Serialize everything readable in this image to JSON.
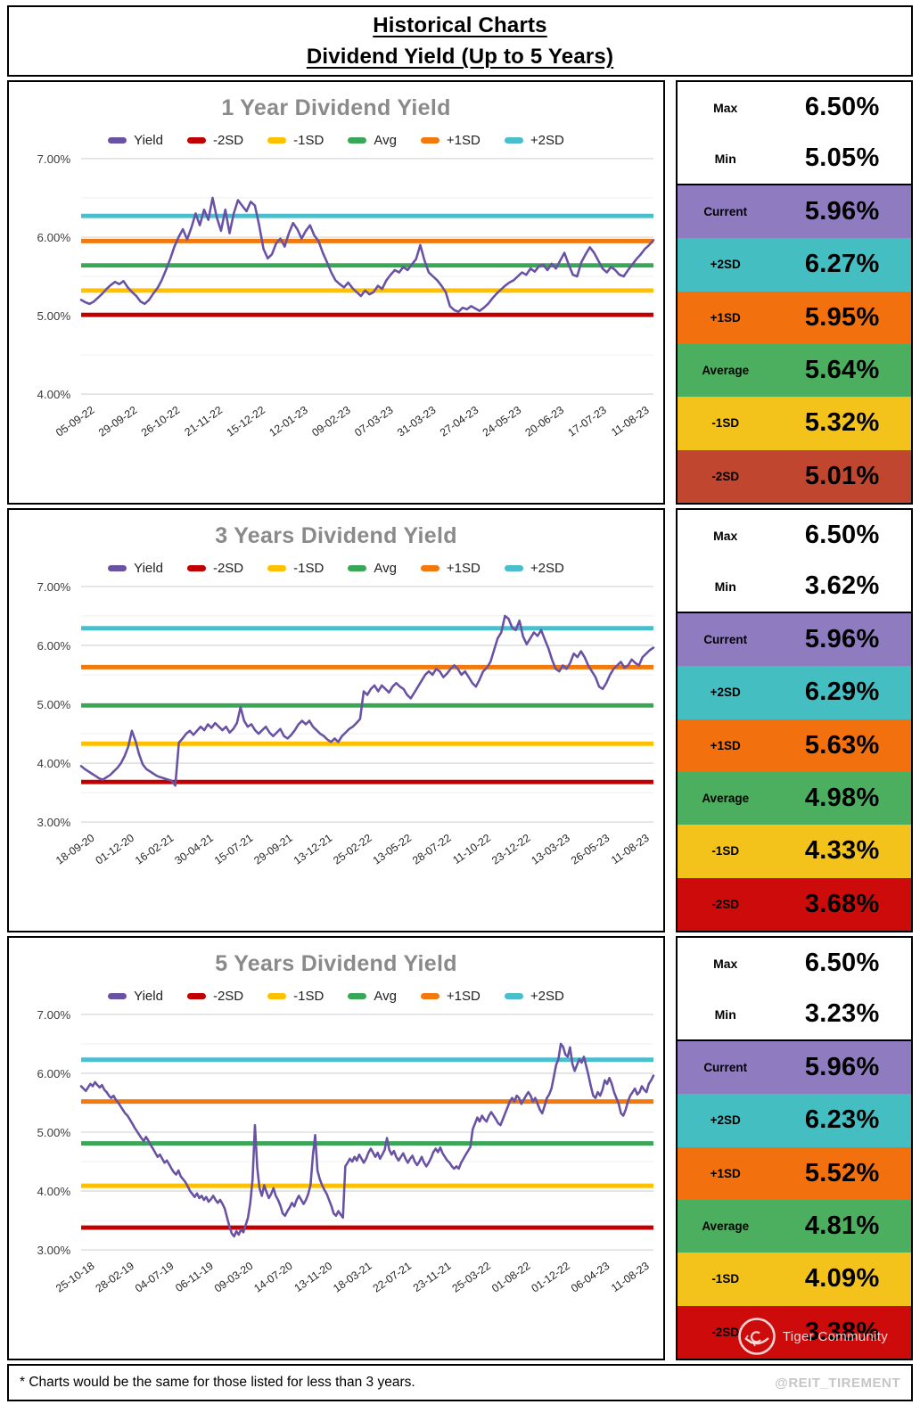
{
  "page": {
    "title_line1": "Historical Charts",
    "title_line2": "Dividend Yield (Up to 5 Years)",
    "footnote": "* Charts would be the same for those listed for less than 3 years.",
    "credit": "@REIT_TIREMENT",
    "watermark": "Tiger Community"
  },
  "colors": {
    "yield_line": "#6952a3",
    "minus2sd_line": "#c00000",
    "minus1sd_line": "#ffc000",
    "avg_line": "#3aa757",
    "plus1sd_line": "#f2790d",
    "plus2sd_line": "#4bbecd",
    "chart_title_gray": "#8a8a8a",
    "major_grid": "#d9d9d9",
    "minor_grid": "#efefef",
    "panel_current": "#8f7cc0",
    "panel_plus2sd": "#45bec2",
    "panel_plus1sd": "#f2700d",
    "panel_average": "#4cae5f",
    "panel_minus1sd": "#f3c31c",
    "panel_minus2sd_brick": "#c0462f",
    "panel_minus2sd_red": "#ce0b0b"
  },
  "legend": {
    "items": [
      {
        "label": "Yield",
        "color": "#6952a3"
      },
      {
        "label": "-2SD",
        "color": "#c00000"
      },
      {
        "label": "-1SD",
        "color": "#ffc000"
      },
      {
        "label": "Avg",
        "color": "#3aa757"
      },
      {
        "label": "+1SD",
        "color": "#f2790d"
      },
      {
        "label": "+2SD",
        "color": "#4bbecd"
      }
    ]
  },
  "chart_data": [
    {
      "type": "line",
      "title": "1 Year Dividend Yield",
      "ylim": [
        4,
        7
      ],
      "ytick_values": [
        7,
        6,
        5,
        4
      ],
      "ytick_labels": [
        "7.00%",
        "6.00%",
        "5.00%",
        "4.00%"
      ],
      "minor_grid_step": 0.5,
      "grid": true,
      "legend_position": "top",
      "categories": [
        "05-09-22",
        "29-09-22",
        "26-10-22",
        "21-11-22",
        "15-12-22",
        "12-01-23",
        "09-02-23",
        "07-03-23",
        "31-03-23",
        "27-04-23",
        "24-05-23",
        "20-06-23",
        "17-07-23",
        "11-08-23"
      ],
      "reference_lines": [
        {
          "name": "+2SD",
          "value": 6.27,
          "color": "#4bbecd"
        },
        {
          "name": "+1SD",
          "value": 5.95,
          "color": "#f2790d"
        },
        {
          "name": "Avg",
          "value": 5.64,
          "color": "#3aa757"
        },
        {
          "name": "-1SD",
          "value": 5.32,
          "color": "#ffc000"
        },
        {
          "name": "-2SD",
          "value": 5.01,
          "color": "#c00000"
        }
      ],
      "series": [
        {
          "name": "Yield",
          "color": "#6952a3",
          "values": [
            5.2,
            5.17,
            5.15,
            5.18,
            5.23,
            5.28,
            5.34,
            5.39,
            5.43,
            5.4,
            5.44,
            5.36,
            5.3,
            5.25,
            5.18,
            5.15,
            5.2,
            5.28,
            5.35,
            5.45,
            5.58,
            5.72,
            5.88,
            6.0,
            6.1,
            5.97,
            6.12,
            6.3,
            6.15,
            6.35,
            6.22,
            6.5,
            6.25,
            6.08,
            6.35,
            6.05,
            6.3,
            6.47,
            6.4,
            6.33,
            6.45,
            6.4,
            6.15,
            5.85,
            5.73,
            5.78,
            5.92,
            5.98,
            5.88,
            6.05,
            6.18,
            6.1,
            5.98,
            6.08,
            6.15,
            6.02,
            5.95,
            5.8,
            5.68,
            5.55,
            5.45,
            5.4,
            5.36,
            5.42,
            5.35,
            5.3,
            5.25,
            5.32,
            5.27,
            5.3,
            5.38,
            5.34,
            5.45,
            5.52,
            5.58,
            5.55,
            5.62,
            5.58,
            5.65,
            5.72,
            5.9,
            5.7,
            5.55,
            5.5,
            5.45,
            5.38,
            5.3,
            5.12,
            5.07,
            5.05,
            5.1,
            5.08,
            5.12,
            5.09,
            5.06,
            5.1,
            5.15,
            5.22,
            5.28,
            5.33,
            5.38,
            5.42,
            5.45,
            5.5,
            5.55,
            5.52,
            5.6,
            5.56,
            5.63,
            5.65,
            5.58,
            5.66,
            5.6,
            5.7,
            5.8,
            5.65,
            5.52,
            5.5,
            5.68,
            5.78,
            5.87,
            5.8,
            5.7,
            5.6,
            5.55,
            5.62,
            5.58,
            5.52,
            5.5,
            5.58,
            5.65,
            5.72,
            5.78,
            5.85,
            5.9,
            5.96
          ]
        }
      ]
    },
    {
      "type": "line",
      "title": "3 Years Dividend Yield",
      "ylim": [
        3,
        7
      ],
      "ytick_values": [
        7,
        6,
        5,
        4,
        3
      ],
      "ytick_labels": [
        "7.00%",
        "6.00%",
        "5.00%",
        "4.00%",
        "3.00%"
      ],
      "minor_grid_step": 0.5,
      "grid": true,
      "legend_position": "top",
      "categories": [
        "18-09-20",
        "01-12-20",
        "16-02-21",
        "30-04-21",
        "15-07-21",
        "29-09-21",
        "13-12-21",
        "25-02-22",
        "13-05-22",
        "28-07-22",
        "11-10-22",
        "23-12-22",
        "13-03-23",
        "26-05-23",
        "11-08-23"
      ],
      "reference_lines": [
        {
          "name": "+2SD",
          "value": 6.29,
          "color": "#4bbecd"
        },
        {
          "name": "+1SD",
          "value": 5.63,
          "color": "#f2790d"
        },
        {
          "name": "Avg",
          "value": 4.98,
          "color": "#3aa757"
        },
        {
          "name": "-1SD",
          "value": 4.33,
          "color": "#ffc000"
        },
        {
          "name": "-2SD",
          "value": 3.68,
          "color": "#c00000"
        }
      ],
      "series": [
        {
          "name": "Yield",
          "color": "#6952a3",
          "values": [
            3.95,
            3.9,
            3.86,
            3.82,
            3.78,
            3.74,
            3.72,
            3.76,
            3.8,
            3.86,
            3.92,
            4.0,
            4.12,
            4.28,
            4.55,
            4.38,
            4.15,
            3.98,
            3.9,
            3.86,
            3.82,
            3.78,
            3.76,
            3.74,
            3.72,
            3.7,
            3.62,
            4.35,
            4.42,
            4.5,
            4.55,
            4.48,
            4.55,
            4.62,
            4.56,
            4.66,
            4.6,
            4.68,
            4.62,
            4.56,
            4.62,
            4.52,
            4.58,
            4.68,
            4.95,
            4.72,
            4.62,
            4.66,
            4.56,
            4.5,
            4.56,
            4.62,
            4.52,
            4.46,
            4.52,
            4.58,
            4.46,
            4.42,
            4.48,
            4.56,
            4.66,
            4.72,
            4.66,
            4.72,
            4.62,
            4.56,
            4.5,
            4.46,
            4.4,
            4.36,
            4.42,
            4.36,
            4.46,
            4.52,
            4.58,
            4.62,
            4.68,
            4.75,
            5.22,
            5.16,
            5.26,
            5.32,
            5.22,
            5.32,
            5.26,
            5.2,
            5.3,
            5.36,
            5.3,
            5.26,
            5.16,
            5.1,
            5.2,
            5.3,
            5.4,
            5.5,
            5.56,
            5.5,
            5.6,
            5.56,
            5.46,
            5.52,
            5.6,
            5.66,
            5.6,
            5.5,
            5.56,
            5.46,
            5.36,
            5.3,
            5.42,
            5.56,
            5.62,
            5.72,
            5.92,
            6.12,
            6.22,
            6.5,
            6.45,
            6.3,
            6.26,
            6.42,
            6.15,
            6.02,
            6.12,
            6.22,
            6.16,
            6.26,
            6.1,
            5.95,
            5.76,
            5.6,
            5.56,
            5.66,
            5.6,
            5.7,
            5.86,
            5.8,
            5.9,
            5.8,
            5.66,
            5.56,
            5.46,
            5.3,
            5.26,
            5.36,
            5.5,
            5.6,
            5.66,
            5.72,
            5.62,
            5.66,
            5.76,
            5.7,
            5.66,
            5.8,
            5.86,
            5.92,
            5.96
          ]
        }
      ]
    },
    {
      "type": "line",
      "title": "5 Years Dividend Yield",
      "ylim": [
        3,
        7
      ],
      "ytick_values": [
        7,
        6,
        5,
        4,
        3
      ],
      "ytick_labels": [
        "7.00%",
        "6.00%",
        "5.00%",
        "4.00%",
        "3.00%"
      ],
      "minor_grid_step": 0.5,
      "grid": true,
      "legend_position": "top",
      "categories": [
        "25-10-18",
        "28-02-19",
        "04-07-19",
        "06-11-19",
        "09-03-20",
        "14-07-20",
        "13-11-20",
        "18-03-21",
        "22-07-21",
        "23-11-21",
        "25-03-22",
        "01-08-22",
        "01-12-22",
        "06-04-23",
        "11-08-23"
      ],
      "reference_lines": [
        {
          "name": "+2SD",
          "value": 6.23,
          "color": "#4bbecd"
        },
        {
          "name": "+1SD",
          "value": 5.52,
          "color": "#f2790d"
        },
        {
          "name": "Avg",
          "value": 4.81,
          "color": "#3aa757"
        },
        {
          "name": "-1SD",
          "value": 4.09,
          "color": "#ffc000"
        },
        {
          "name": "-2SD",
          "value": 3.38,
          "color": "#c00000"
        }
      ],
      "series": [
        {
          "name": "Yield",
          "color": "#6952a3",
          "values": [
            5.78,
            5.74,
            5.7,
            5.76,
            5.82,
            5.78,
            5.85,
            5.8,
            5.76,
            5.8,
            5.72,
            5.68,
            5.62,
            5.58,
            5.62,
            5.55,
            5.5,
            5.44,
            5.38,
            5.32,
            5.28,
            5.22,
            5.15,
            5.08,
            5.02,
            4.96,
            4.9,
            4.85,
            4.92,
            4.86,
            4.78,
            4.72,
            4.65,
            4.58,
            4.62,
            4.55,
            4.48,
            4.52,
            4.45,
            4.38,
            4.32,
            4.28,
            4.35,
            4.25,
            4.2,
            4.15,
            4.08,
            4.0,
            3.95,
            3.9,
            3.96,
            3.88,
            3.92,
            3.85,
            3.9,
            3.82,
            3.86,
            3.92,
            3.85,
            3.8,
            3.85,
            3.78,
            3.7,
            3.55,
            3.4,
            3.28,
            3.23,
            3.32,
            3.26,
            3.35,
            3.3,
            3.42,
            3.55,
            3.8,
            4.2,
            5.12,
            4.4,
            4.05,
            3.92,
            4.1,
            3.98,
            3.88,
            3.95,
            4.05,
            3.92,
            3.85,
            3.75,
            3.62,
            3.58,
            3.66,
            3.72,
            3.8,
            3.74,
            3.85,
            3.92,
            3.85,
            3.78,
            3.85,
            3.95,
            4.1,
            4.6,
            4.95,
            4.35,
            4.2,
            4.1,
            4.02,
            3.95,
            3.85,
            3.75,
            3.62,
            3.58,
            3.66,
            3.6,
            3.55,
            4.42,
            4.48,
            4.55,
            4.5,
            4.58,
            4.52,
            4.62,
            4.55,
            4.48,
            4.55,
            4.65,
            4.72,
            4.65,
            4.58,
            4.65,
            4.55,
            4.62,
            4.7,
            4.9,
            4.7,
            4.62,
            4.68,
            4.58,
            4.52,
            4.58,
            4.64,
            4.55,
            4.48,
            4.55,
            4.6,
            4.5,
            4.44,
            4.5,
            4.58,
            4.48,
            4.42,
            4.48,
            4.56,
            4.66,
            4.72,
            4.66,
            4.74,
            4.64,
            4.58,
            4.52,
            4.48,
            4.42,
            4.38,
            4.42,
            4.38,
            4.48,
            4.55,
            4.62,
            4.68,
            4.75,
            5.05,
            5.15,
            5.25,
            5.18,
            5.28,
            5.22,
            5.18,
            5.28,
            5.34,
            5.28,
            5.22,
            5.15,
            5.12,
            5.22,
            5.32,
            5.42,
            5.52,
            5.58,
            5.52,
            5.62,
            5.58,
            5.48,
            5.55,
            5.62,
            5.68,
            5.62,
            5.52,
            5.58,
            5.48,
            5.38,
            5.32,
            5.44,
            5.58,
            5.64,
            5.74,
            5.94,
            6.14,
            6.24,
            6.5,
            6.45,
            6.32,
            6.28,
            6.44,
            6.16,
            6.04,
            6.14,
            6.24,
            6.18,
            6.28,
            6.12,
            5.96,
            5.78,
            5.62,
            5.58,
            5.68,
            5.62,
            5.72,
            5.88,
            5.82,
            5.92,
            5.82,
            5.68,
            5.58,
            5.48,
            5.32,
            5.28,
            5.38,
            5.52,
            5.62,
            5.68,
            5.74,
            5.64,
            5.68,
            5.78,
            5.72,
            5.68,
            5.82,
            5.88,
            5.96
          ]
        }
      ]
    }
  ],
  "stats_panels": [
    {
      "rows": [
        {
          "label": "Max",
          "value": "6.50%",
          "bg": "#ffffff"
        },
        {
          "label": "Min",
          "value": "5.05%",
          "bg": "#ffffff"
        },
        {
          "label": "Current",
          "value": "5.96%",
          "bg": "#8f7cc0"
        },
        {
          "label": "+2SD",
          "value": "6.27%",
          "bg": "#45bec2"
        },
        {
          "label": "+1SD",
          "value": "5.95%",
          "bg": "#f2700d"
        },
        {
          "label": "Average",
          "value": "5.64%",
          "bg": "#4cae5f"
        },
        {
          "label": "-1SD",
          "value": "5.32%",
          "bg": "#f3c31c"
        },
        {
          "label": "-2SD",
          "value": "5.01%",
          "bg": "#c0462f"
        }
      ]
    },
    {
      "rows": [
        {
          "label": "Max",
          "value": "6.50%",
          "bg": "#ffffff"
        },
        {
          "label": "Min",
          "value": "3.62%",
          "bg": "#ffffff"
        },
        {
          "label": "Current",
          "value": "5.96%",
          "bg": "#8f7cc0"
        },
        {
          "label": "+2SD",
          "value": "6.29%",
          "bg": "#45bec2"
        },
        {
          "label": "+1SD",
          "value": "5.63%",
          "bg": "#f2700d"
        },
        {
          "label": "Average",
          "value": "4.98%",
          "bg": "#4cae5f"
        },
        {
          "label": "-1SD",
          "value": "4.33%",
          "bg": "#f3c31c"
        },
        {
          "label": "-2SD",
          "value": "3.68%",
          "bg": "#ce0b0b"
        }
      ]
    },
    {
      "rows": [
        {
          "label": "Max",
          "value": "6.50%",
          "bg": "#ffffff"
        },
        {
          "label": "Min",
          "value": "3.23%",
          "bg": "#ffffff"
        },
        {
          "label": "Current",
          "value": "5.96%",
          "bg": "#8f7cc0"
        },
        {
          "label": "+2SD",
          "value": "6.23%",
          "bg": "#45bec2"
        },
        {
          "label": "+1SD",
          "value": "5.52%",
          "bg": "#f2700d"
        },
        {
          "label": "Average",
          "value": "4.81%",
          "bg": "#4cae5f"
        },
        {
          "label": "-1SD",
          "value": "4.09%",
          "bg": "#f3c31c"
        },
        {
          "label": "-2SD",
          "value": "3.38%",
          "bg": "#ce0b0b"
        }
      ]
    }
  ]
}
